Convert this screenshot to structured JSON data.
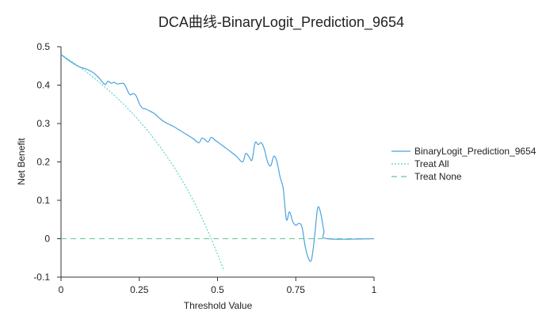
{
  "chart_data": {
    "type": "line",
    "title": "DCA曲线-BinaryLogit_Prediction_9654",
    "xlabel": "Threshold Value",
    "ylabel": "Net Benefit",
    "xlim": [
      0,
      1
    ],
    "ylim": [
      -0.1,
      0.5
    ],
    "x_ticks": [
      "0",
      "0.25",
      "0.5",
      "0.75",
      "1"
    ],
    "y_ticks": [
      "0.5",
      "0.4",
      "0.3",
      "0.2",
      "0.1",
      "0",
      "-0.1"
    ],
    "grid": false,
    "legend_position": "right",
    "series": [
      {
        "name": "BinaryLogit_Prediction_9654",
        "color": "#4aa3df",
        "style": "solid",
        "x": [
          0,
          0.02,
          0.04,
          0.06,
          0.08,
          0.1,
          0.12,
          0.14,
          0.15,
          0.16,
          0.17,
          0.18,
          0.2,
          0.21,
          0.22,
          0.23,
          0.24,
          0.25,
          0.26,
          0.27,
          0.28,
          0.3,
          0.32,
          0.34,
          0.36,
          0.38,
          0.4,
          0.42,
          0.44,
          0.45,
          0.46,
          0.47,
          0.48,
          0.49,
          0.5,
          0.52,
          0.54,
          0.56,
          0.58,
          0.59,
          0.6,
          0.61,
          0.62,
          0.63,
          0.64,
          0.65,
          0.66,
          0.67,
          0.68,
          0.69,
          0.7,
          0.71,
          0.72,
          0.73,
          0.74,
          0.75,
          0.76,
          0.77,
          0.78,
          0.79,
          0.8,
          0.81,
          0.82,
          0.83,
          0.84,
          0.85,
          1
        ],
        "y": [
          0.48,
          0.467,
          0.456,
          0.447,
          0.442,
          0.434,
          0.42,
          0.402,
          0.41,
          0.405,
          0.407,
          0.403,
          0.404,
          0.39,
          0.375,
          0.378,
          0.372,
          0.352,
          0.34,
          0.338,
          0.334,
          0.325,
          0.31,
          0.3,
          0.292,
          0.282,
          0.272,
          0.262,
          0.25,
          0.262,
          0.258,
          0.252,
          0.264,
          0.258,
          0.252,
          0.24,
          0.228,
          0.215,
          0.2,
          0.222,
          0.214,
          0.205,
          0.25,
          0.245,
          0.25,
          0.232,
          0.2,
          0.19,
          0.215,
          0.2,
          0.16,
          0.13,
          0.05,
          0.07,
          0.045,
          0.035,
          0.04,
          0.03,
          -0.02,
          -0.05,
          -0.055,
          0.005,
          0.08,
          0.065,
          0.02,
          0,
          0
        ]
      },
      {
        "name": "Treat All",
        "color": "#4fd3c4",
        "style": "dotted",
        "x": [
          0,
          0.05,
          0.1,
          0.15,
          0.2,
          0.25,
          0.3,
          0.35,
          0.4,
          0.45,
          0.5,
          0.52
        ],
        "y": [
          0.48,
          0.4526,
          0.4222,
          0.3882,
          0.35,
          0.3067,
          0.2571,
          0.2,
          0.1333,
          0.0545,
          -0.04,
          -0.0833
        ]
      },
      {
        "name": "Treat None",
        "color": "#5ec98f",
        "style": "dashed",
        "x": [
          0,
          1
        ],
        "y": [
          0,
          0
        ]
      }
    ]
  }
}
